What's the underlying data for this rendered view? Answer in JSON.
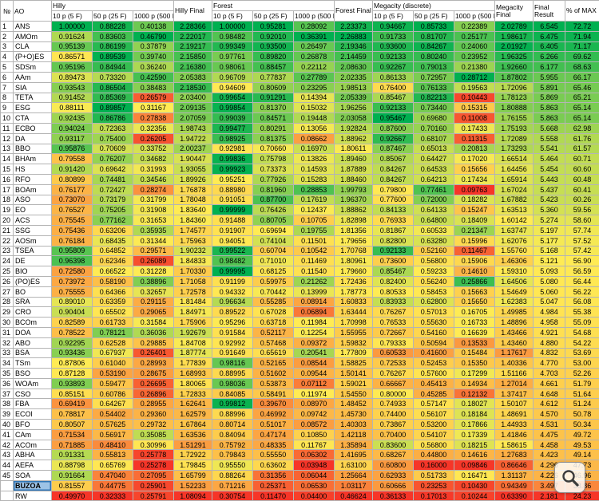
{
  "table": {
    "header": {
      "num_label": "№",
      "ao_label": "AO",
      "groups": [
        {
          "label": "Hilly",
          "final": "Hilly Final"
        },
        {
          "label": "Forest",
          "final": "Forest Final"
        },
        {
          "label": "Megacity (discrete)",
          "final": "Megacity Final"
        }
      ],
      "subcols": [
        "10 p (5 F)",
        "50 p (25 F)",
        "1000 p (500 F)"
      ],
      "final_result_label": "Final Result",
      "pct_label": "% of MAX"
    },
    "rows": [
      {
        "num": "1",
        "ao": "ANS",
        "values": [
          "1.00000",
          "0.88228",
          "0.40138",
          "2.28366",
          "1.00000",
          "0.95281",
          "0.28092",
          "2.23373",
          "0.94667",
          "0.85733",
          "0.22389",
          "2.02789",
          "6.545",
          "72.72"
        ]
      },
      {
        "num": "2",
        "ao": "AMOm",
        "values": [
          "0.91624",
          "0.83603",
          "0.46790",
          "2.22017",
          "0.98482",
          "0.92010",
          "0.36391",
          "2.26883",
          "0.91733",
          "0.81707",
          "0.25177",
          "1.98617",
          "6.475",
          "71.94"
        ]
      },
      {
        "num": "3",
        "ao": "CLA",
        "values": [
          "0.95139",
          "0.86199",
          "0.37879",
          "2.19217",
          "0.99349",
          "0.93500",
          "0.26497",
          "2.19346",
          "0.93600",
          "0.84267",
          "0.24060",
          "2.01927",
          "6.405",
          "71.17"
        ]
      },
      {
        "num": "4",
        "ao": "(P+O)ES",
        "values": [
          "0.86571",
          "0.89539",
          "0.39740",
          "2.15850",
          "0.97761",
          "0.89820",
          "0.26878",
          "2.14459",
          "0.92133",
          "0.80240",
          "0.23952",
          "1.96325",
          "6.266",
          "69.62"
        ]
      },
      {
        "num": "5",
        "ao": "SDSm",
        "values": [
          "0.95196",
          "0.84944",
          "0.36240",
          "2.16380",
          "0.98061",
          "0.88457",
          "0.22112",
          "2.08630",
          "0.92267",
          "0.79013",
          "0.21380",
          "1.92660",
          "6.177",
          "68.63"
        ]
      },
      {
        "num": "6",
        "ao": "AAm",
        "values": [
          "0.89473",
          "0.73320",
          "0.42590",
          "2.05383",
          "0.96709",
          "0.77837",
          "0.27789",
          "2.02335",
          "0.86133",
          "0.72957",
          "0.28712",
          "1.87802",
          "5.955",
          "66.17"
        ]
      },
      {
        "num": "7",
        "ao": "SIA",
        "values": [
          "0.93543",
          "0.86504",
          "0.38483",
          "2.18530",
          "0.94609",
          "0.80609",
          "0.23295",
          "1.98513",
          "0.76400",
          "0.76133",
          "0.19563",
          "1.72096",
          "5.891",
          "65.46"
        ]
      },
      {
        "num": "8",
        "ao": "TETA",
        "values": [
          "0.91452",
          "0.85369",
          "0.26579",
          "2.03400",
          "0.99654",
          "0.91291",
          "0.14394",
          "2.05339",
          "0.85467",
          "0.82213",
          "0.10443",
          "1.78123",
          "5.869",
          "65.21"
        ]
      },
      {
        "num": "9",
        "ao": "ESG",
        "values": [
          "0.88111",
          "0.89857",
          "0.31167",
          "2.09135",
          "0.99854",
          "0.81370",
          "0.15032",
          "1.96256",
          "0.92133",
          "0.73440",
          "0.15315",
          "1.80888",
          "5.863",
          "65.14"
        ]
      },
      {
        "num": "10",
        "ao": "CTA",
        "values": [
          "0.92435",
          "0.86786",
          "0.27838",
          "2.07059",
          "0.99039",
          "0.84571",
          "0.19448",
          "2.03058",
          "0.95467",
          "0.69680",
          "0.11008",
          "1.76155",
          "5.863",
          "65.14"
        ]
      },
      {
        "num": "11",
        "ao": "ECBO",
        "values": [
          "0.94024",
          "0.72363",
          "0.32356",
          "1.98743",
          "0.99477",
          "0.80291",
          "0.13056",
          "1.92824",
          "0.87600",
          "0.70160",
          "0.17433",
          "1.75193",
          "5.668",
          "62.98"
        ]
      },
      {
        "num": "12",
        "ao": "DA",
        "values": [
          "0.93117",
          "0.75400",
          "0.26205",
          "1.94722",
          "0.98925",
          "0.81375",
          "0.08662",
          "1.88962",
          "0.92667",
          "0.68107",
          "0.11315",
          "1.72089",
          "5.558",
          "61.76"
        ]
      },
      {
        "num": "13",
        "ao": "BBO",
        "values": [
          "0.95876",
          "0.70609",
          "0.33752",
          "2.00237",
          "0.92981",
          "0.70660",
          "0.16970",
          "1.80611",
          "0.87467",
          "0.65013",
          "0.20813",
          "1.73293",
          "5.541",
          "61.57"
        ]
      },
      {
        "num": "14",
        "ao": "BHAm",
        "values": [
          "0.79558",
          "0.76207",
          "0.34682",
          "1.90447",
          "0.99836",
          "0.75798",
          "0.13826",
          "1.89460",
          "0.85067",
          "0.64427",
          "0.17020",
          "1.66514",
          "5.464",
          "60.71"
        ]
      },
      {
        "num": "15",
        "ao": "HS",
        "values": [
          "0.91420",
          "0.69642",
          "0.31993",
          "1.93055",
          "0.99923",
          "0.73373",
          "0.14593",
          "1.87889",
          "0.84267",
          "0.64533",
          "0.15656",
          "1.64456",
          "5.454",
          "60.60"
        ]
      },
      {
        "num": "16",
        "ao": "RFO",
        "values": [
          "0.80899",
          "0.74481",
          "0.34546",
          "1.89926",
          "0.95251",
          "0.77926",
          "0.15283",
          "1.88460",
          "0.84267",
          "0.64213",
          "0.17434",
          "1.65914",
          "5.443",
          "60.48"
        ]
      },
      {
        "num": "17",
        "ao": "BOAm",
        "values": [
          "0.76177",
          "0.72427",
          "0.28274",
          "1.76878",
          "0.88980",
          "0.81960",
          "0.28853",
          "1.99793",
          "0.79800",
          "0.77461",
          "0.09763",
          "1.67024",
          "5.437",
          "60.41"
        ]
      },
      {
        "num": "18",
        "ao": "ASO",
        "values": [
          "0.73070",
          "0.73179",
          "0.31799",
          "1.78048",
          "0.91051",
          "0.87700",
          "0.17619",
          "1.96370",
          "0.77600",
          "0.72000",
          "0.18282",
          "1.67882",
          "5.423",
          "60.26"
        ]
      },
      {
        "num": "19",
        "ao": "EO",
        "values": [
          "0.76527",
          "0.75205",
          "0.31908",
          "1.83640",
          "0.99999",
          "0.76426",
          "0.12437",
          "1.88862",
          "0.84133",
          "0.64133",
          "0.15247",
          "1.63513",
          "5.360",
          "59.56"
        ]
      },
      {
        "num": "20",
        "ao": "ACS",
        "values": [
          "0.75545",
          "0.77162",
          "0.31653",
          "1.84360",
          "0.91488",
          "0.80705",
          "0.10705",
          "1.82898",
          "0.76933",
          "0.64800",
          "0.18409",
          "1.60142",
          "5.274",
          "58.60"
        ]
      },
      {
        "num": "21",
        "ao": "SSG",
        "values": [
          "0.75436",
          "0.63206",
          "0.35935",
          "1.74577",
          "0.91907",
          "0.69694",
          "0.19755",
          "1.81356",
          "0.81867",
          "0.60533",
          "0.21347",
          "1.63747",
          "5.197",
          "57.74"
        ]
      },
      {
        "num": "22",
        "ao": "AOSm",
        "values": [
          "0.76184",
          "0.68435",
          "0.31344",
          "1.75963",
          "0.94051",
          "0.74104",
          "0.11501",
          "1.79656",
          "0.82800",
          "0.63280",
          "0.15996",
          "1.62076",
          "5.177",
          "57.52"
        ]
      },
      {
        "num": "23",
        "ao": "TSEA",
        "values": [
          "0.95809",
          "0.64852",
          "0.29571",
          "1.90232",
          "0.99522",
          "0.60704",
          "0.10542",
          "1.70768",
          "0.92133",
          "0.52160",
          "0.11467",
          "1.55760",
          "5.168",
          "57.42"
        ]
      },
      {
        "num": "24",
        "ao": "DE",
        "values": [
          "0.96398",
          "0.62346",
          "0.26089",
          "1.84833",
          "0.98482",
          "0.71010",
          "0.11469",
          "1.80961",
          "0.73600",
          "0.56800",
          "0.15906",
          "1.46306",
          "5.121",
          "56.90"
        ]
      },
      {
        "num": "25",
        "ao": "BIO",
        "values": [
          "0.72580",
          "0.66522",
          "0.31228",
          "1.70330",
          "0.99995",
          "0.68125",
          "0.11540",
          "1.79660",
          "0.85467",
          "0.59233",
          "0.14610",
          "1.59310",
          "5.093",
          "56.59"
        ]
      },
      {
        "num": "26",
        "ao": "(PO)ES",
        "values": [
          "0.73972",
          "0.58190",
          "0.38896",
          "1.71058",
          "0.91199",
          "0.59975",
          "0.21262",
          "1.72436",
          "0.82400",
          "0.56240",
          "0.25866",
          "1.64506",
          "5.080",
          "56.44"
        ]
      },
      {
        "num": "27",
        "ao": "BO",
        "values": [
          "0.75555",
          "0.64366",
          "0.32657",
          "1.72578",
          "0.94332",
          "0.70442",
          "0.13999",
          "1.78773",
          "0.80533",
          "0.58453",
          "0.15663",
          "1.54649",
          "5.060",
          "56.22"
        ]
      },
      {
        "num": "28",
        "ao": "SRA",
        "values": [
          "0.89010",
          "0.63359",
          "0.29115",
          "1.81484",
          "0.96634",
          "0.55285",
          "0.08914",
          "1.60833",
          "0.83933",
          "0.62800",
          "0.15650",
          "1.62383",
          "5.047",
          "56.08"
        ]
      },
      {
        "num": "29",
        "ao": "CRO",
        "values": [
          "0.90404",
          "0.65502",
          "0.29065",
          "1.84971",
          "0.89522",
          "0.67028",
          "0.06894",
          "1.63444",
          "0.76267",
          "0.57013",
          "0.16705",
          "1.49985",
          "4.984",
          "55.38"
        ]
      },
      {
        "num": "30",
        "ao": "BCOm",
        "values": [
          "0.82589",
          "0.61733",
          "0.31584",
          "1.75906",
          "0.95296",
          "0.63718",
          "0.11984",
          "1.70998",
          "0.76533",
          "0.55630",
          "0.16733",
          "1.48896",
          "4.958",
          "55.09"
        ]
      },
      {
        "num": "31",
        "ao": "DOA",
        "values": [
          "0.78522",
          "0.78121",
          "0.36036",
          "1.92679",
          "0.91584",
          "0.52117",
          "0.12254",
          "1.55955",
          "0.72667",
          "0.54160",
          "0.16639",
          "1.43466",
          "4.921",
          "54.68"
        ]
      },
      {
        "num": "32",
        "ao": "ABO",
        "values": [
          "0.92295",
          "0.62528",
          "0.29885",
          "1.84708",
          "0.92992",
          "0.57468",
          "0.09372",
          "1.59832",
          "0.79333",
          "0.50594",
          "0.13533",
          "1.43460",
          "4.880",
          "54.22"
        ]
      },
      {
        "num": "33",
        "ao": "BSA",
        "values": [
          "0.93436",
          "0.67937",
          "0.26401",
          "1.87774",
          "0.91649",
          "0.65619",
          "0.20541",
          "1.77809",
          "0.60533",
          "0.41600",
          "0.15484",
          "1.17617",
          "4.832",
          "53.69"
        ]
      },
      {
        "num": "34",
        "ao": "TSm",
        "values": [
          "0.87806",
          "0.61040",
          "0.28993",
          "1.77839",
          "0.98116",
          "0.52165",
          "0.08544",
          "1.58825",
          "0.72533",
          "0.52453",
          "0.15350",
          "1.40336",
          "4.770",
          "53.00"
        ]
      },
      {
        "num": "35",
        "ao": "BSO",
        "values": [
          "0.87128",
          "0.53190",
          "0.28675",
          "1.68993",
          "0.88995",
          "0.51602",
          "0.09544",
          "1.50141",
          "0.76267",
          "0.57600",
          "0.17299",
          "1.51166",
          "4.703",
          "52.26"
        ]
      },
      {
        "num": "36",
        "ao": "WOAm",
        "values": [
          "0.93893",
          "0.59477",
          "0.26695",
          "1.80065",
          "0.98036",
          "0.53873",
          "0.07112",
          "1.59021",
          "0.66667",
          "0.45413",
          "0.14934",
          "1.27014",
          "4.661",
          "51.79"
        ]
      },
      {
        "num": "37",
        "ao": "CSO",
        "values": [
          "0.85151",
          "0.60786",
          "0.26896",
          "1.72833",
          "0.84085",
          "0.58491",
          "0.11974",
          "1.54550",
          "0.80000",
          "0.45285",
          "0.12132",
          "1.37417",
          "4.648",
          "51.64"
        ]
      },
      {
        "num": "38",
        "ao": "FBA",
        "values": [
          "0.69419",
          "0.64267",
          "0.28955",
          "1.62641",
          "0.99812",
          "0.39670",
          "0.08970",
          "1.48452",
          "0.74933",
          "0.57147",
          "0.18027",
          "1.50107",
          "4.612",
          "51.24"
        ]
      },
      {
        "num": "39",
        "ao": "ECOl",
        "values": [
          "0.78817",
          "0.54402",
          "0.29360",
          "1.62579",
          "0.88996",
          "0.46992",
          "0.09742",
          "1.45730",
          "0.74400",
          "0.56107",
          "0.18184",
          "1.48691",
          "4.570",
          "50.78"
        ]
      },
      {
        "num": "40",
        "ao": "BFO",
        "values": [
          "0.80507",
          "0.57625",
          "0.29732",
          "1.67864",
          "0.80714",
          "0.51017",
          "0.08572",
          "1.40303",
          "0.73867",
          "0.53200",
          "0.17866",
          "1.44933",
          "4.531",
          "50.34"
        ]
      },
      {
        "num": "41",
        "ao": "CAm",
        "values": [
          "0.71534",
          "0.56917",
          "0.35085",
          "1.63536",
          "0.84094",
          "0.47174",
          "0.10850",
          "1.42118",
          "0.70400",
          "0.54107",
          "0.17339",
          "1.41846",
          "4.475",
          "49.72"
        ]
      },
      {
        "num": "42",
        "ao": "ACOm",
        "values": [
          "0.71885",
          "0.48410",
          "0.30996",
          "1.51291",
          "0.75792",
          "0.48335",
          "0.11767",
          "1.35894",
          "0.83600",
          "0.56800",
          "0.18215",
          "1.58615",
          "4.458",
          "49.53"
        ]
      },
      {
        "num": "43",
        "ao": "ABHA",
        "values": [
          "0.91331",
          "0.55813",
          "0.25778",
          "1.72922",
          "0.79843",
          "0.55550",
          "0.06302",
          "1.41695",
          "0.68267",
          "0.44800",
          "0.14616",
          "1.27683",
          "4.423",
          "49.14"
        ]
      },
      {
        "num": "44",
        "ao": "AEFA",
        "values": [
          "0.88798",
          "0.65769",
          "0.25278",
          "1.79845",
          "0.95550",
          "0.63602",
          "0.03948",
          "1.63100",
          "0.60800",
          "0.16000",
          "0.09846",
          "0.86646",
          "4.296",
          "47.73"
        ]
      },
      {
        "num": "45",
        "ao": "SOA",
        "values": [
          "0.91664",
          "0.47040",
          "0.27095",
          "1.65799",
          "0.88264",
          "0.31356",
          "0.06044",
          "1.25664",
          "0.62933",
          "0.51733",
          "0.16471",
          "1.31137",
          "4.226",
          "46.96"
        ]
      },
      {
        "num": "",
        "ao": "BUZOA",
        "selected": true,
        "values": [
          "0.81557",
          "0.44775",
          "0.25901",
          "1.52233",
          "0.71216",
          "0.25371",
          "0.06530",
          "1.03117",
          "0.60666",
          "0.23253",
          "0.10430",
          "0.94349",
          "3.497",
          "38.86"
        ]
      },
      {
        "num": "",
        "ao": "RW",
        "values": [
          "0.49970",
          "0.32333",
          "0.25791",
          "1.08094",
          "0.30754",
          "0.11470",
          "0.04400",
          "0.46624",
          "0.36133",
          "0.17013",
          "0.10244",
          "0.63390",
          "2.181",
          "24.23"
        ]
      }
    ]
  },
  "colors": {
    "scale_low": "#F63528",
    "scale_mid": "#FFEB54",
    "scale_high": "#00B050",
    "grid": "#B4B4B4",
    "selection_bg": "#9DC3E6",
    "selection_border": "#2E75B6"
  },
  "overlay": {
    "zoom_icon": "magnifier"
  }
}
